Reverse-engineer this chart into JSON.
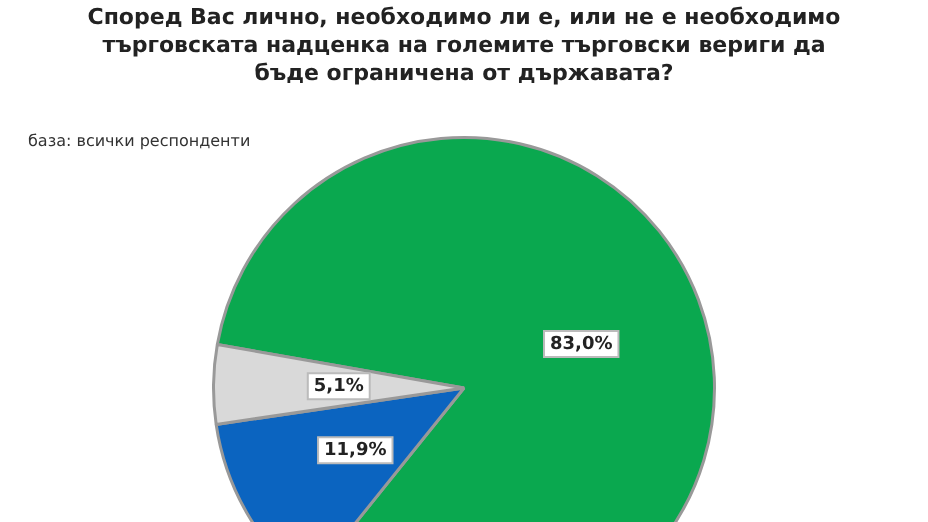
{
  "chart_data": {
    "type": "pie",
    "title": "Според Вас лично, необходимо ли е, или не е необходимо търговската надценка на големите търговски вериги да бъде ограничена от държавата?",
    "annotations": [
      "база: всички респонденти"
    ],
    "categories": [
      null,
      null,
      null
    ],
    "values": [
      83.0,
      11.9,
      5.1
    ],
    "value_labels": [
      "83,0%",
      "11,9%",
      "5,1%"
    ],
    "colors": [
      "#0aa84f",
      "#0b64c0",
      "#d9d9d9"
    ],
    "legend": false
  }
}
